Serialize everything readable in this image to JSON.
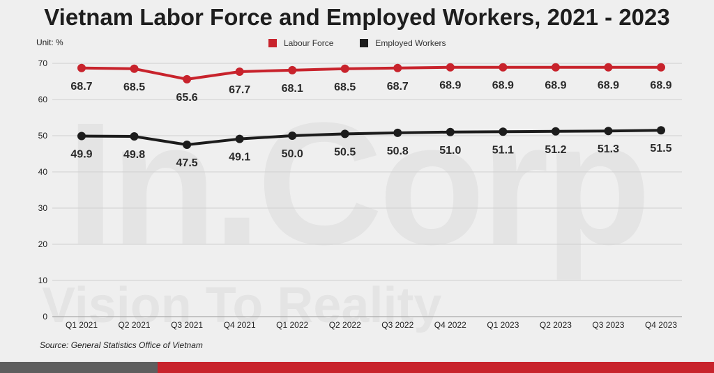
{
  "header": {
    "title": "Vietnam Labor Force and Employed Workers, 2021 - 2023"
  },
  "unit_label": "Unit: %",
  "source": "Source: General Statistics Office of Vietnam",
  "watermark": {
    "brand": "In.Corp",
    "tagline": "Vision To Reality"
  },
  "colors": {
    "labour_force": "#c8232c",
    "employed": "#1c1c1c",
    "footer_gray": "#5e5e5e",
    "footer_red": "#c8232c"
  },
  "chart_data": {
    "type": "line",
    "categories": [
      "Q1 2021",
      "Q2 2021",
      "Q3 2021",
      "Q4 2021",
      "Q1 2022",
      "Q2 2022",
      "Q3 2022",
      "Q4 2022",
      "Q1 2023",
      "Q2 2023",
      "Q3 2023",
      "Q4 2023"
    ],
    "series": [
      {
        "name": "Labour Force",
        "color": "#c8232c",
        "values": [
          68.7,
          68.5,
          65.6,
          67.7,
          68.1,
          68.5,
          68.7,
          68.9,
          68.9,
          68.9,
          68.9,
          68.9
        ]
      },
      {
        "name": "Employed Workers",
        "color": "#1c1c1c",
        "values": [
          49.9,
          49.8,
          47.5,
          49.1,
          50.0,
          50.5,
          50.8,
          51.0,
          51.1,
          51.2,
          51.3,
          51.5
        ]
      }
    ],
    "yticks": [
      0,
      10,
      20,
      30,
      40,
      50,
      60,
      70
    ],
    "ylim": [
      0,
      70
    ],
    "grid": true,
    "legend": "top-center"
  }
}
